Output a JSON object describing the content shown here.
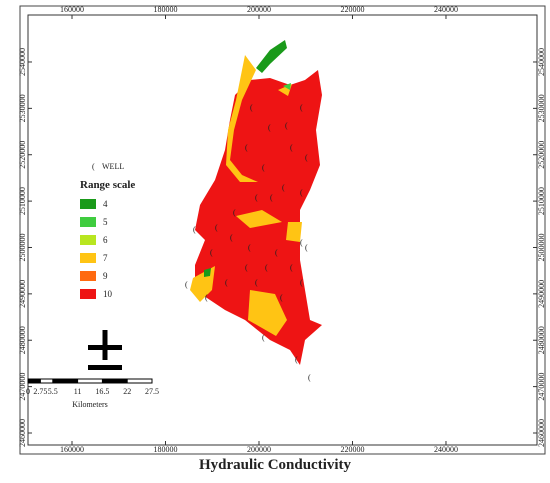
{
  "map": {
    "title": "Hydraulic Conductivity",
    "xlim": [
      150590,
      259470
    ],
    "ylim": [
      2457410,
      2550130
    ],
    "xticks": [
      160000,
      180000,
      200000,
      220000,
      240000
    ],
    "yticks": [
      2460000,
      2470000,
      2480000,
      2490000,
      2500000,
      2510000,
      2520000,
      2530000,
      2540000
    ]
  },
  "legend": {
    "well": "WELL",
    "title": "Range scale",
    "items": [
      {
        "label": "4",
        "color": "#1a9a1a"
      },
      {
        "label": "5",
        "color": "#3fcc3f"
      },
      {
        "label": "6",
        "color": "#b8e620"
      },
      {
        "label": "7",
        "color": "#ffc414"
      },
      {
        "label": "9",
        "color": "#ff6a10"
      },
      {
        "label": "10",
        "color": "#ee1414"
      }
    ]
  },
  "scale_bar": {
    "ticks": [
      0,
      2.75,
      5.5,
      11,
      16.5,
      22,
      27.5
    ],
    "unit": "Kilometers"
  }
}
